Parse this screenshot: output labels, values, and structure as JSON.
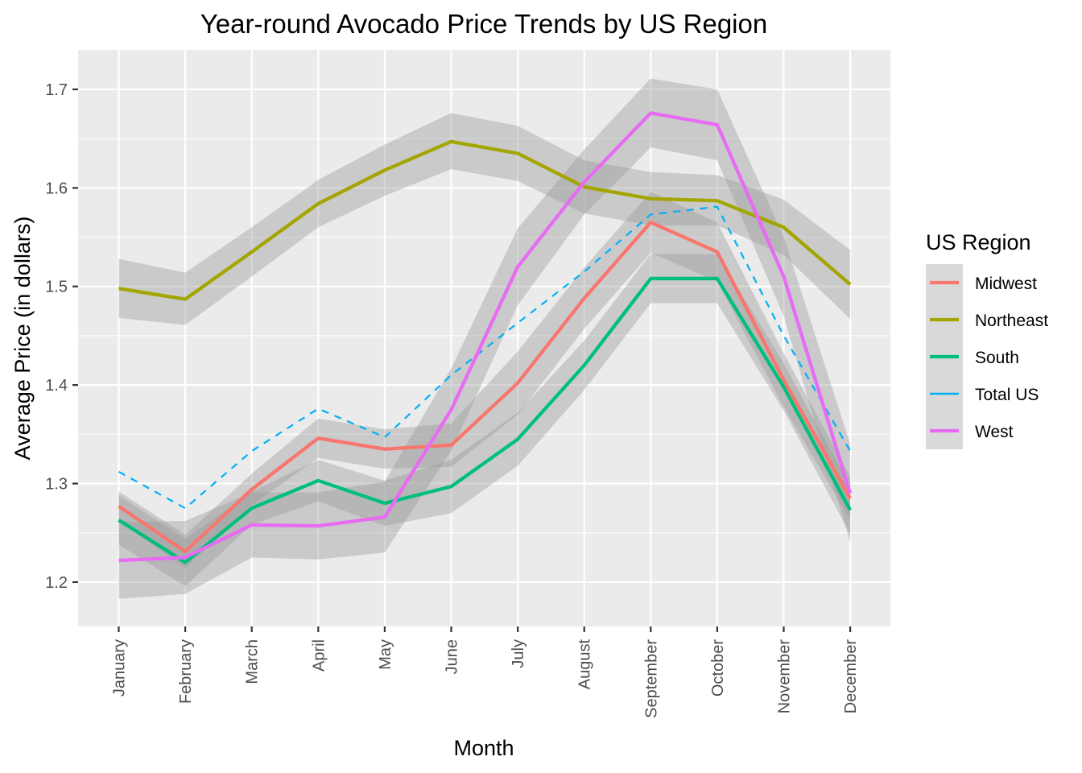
{
  "chart_data": {
    "type": "line",
    "title": "Year-round Avocado Price Trends by US Region",
    "xlabel": "Month",
    "ylabel": "Average Price (in dollars)",
    "categories": [
      "January",
      "February",
      "March",
      "April",
      "May",
      "June",
      "July",
      "August",
      "September",
      "October",
      "November",
      "December"
    ],
    "ylim": [
      1.155,
      1.74
    ],
    "yticks": [
      "1.2",
      "1.3",
      "1.4",
      "1.5",
      "1.6",
      "1.7"
    ],
    "ytick_values": [
      1.2,
      1.3,
      1.4,
      1.5,
      1.6,
      1.7
    ],
    "grid": true,
    "legend": {
      "title": "US Region",
      "position": "right"
    },
    "series": [
      {
        "name": "Midwest",
        "color": "#F8766D",
        "dashed": false,
        "band": true,
        "values": [
          1.277,
          1.231,
          1.294,
          1.346,
          1.335,
          1.339,
          1.402,
          1.488,
          1.565,
          1.535,
          1.405,
          1.285
        ],
        "lower": [
          1.262,
          1.214,
          1.278,
          1.326,
          1.315,
          1.317,
          1.37,
          1.457,
          1.534,
          1.505,
          1.378,
          1.263
        ],
        "upper": [
          1.292,
          1.248,
          1.31,
          1.366,
          1.355,
          1.361,
          1.434,
          1.519,
          1.596,
          1.565,
          1.432,
          1.307
        ]
      },
      {
        "name": "Northeast",
        "color": "#A3A500",
        "dashed": false,
        "band": true,
        "values": [
          1.498,
          1.487,
          1.535,
          1.584,
          1.618,
          1.647,
          1.635,
          1.601,
          1.589,
          1.587,
          1.56,
          1.502
        ],
        "lower": [
          1.468,
          1.461,
          1.51,
          1.56,
          1.592,
          1.619,
          1.607,
          1.574,
          1.562,
          1.562,
          1.532,
          1.467
        ],
        "upper": [
          1.528,
          1.514,
          1.56,
          1.608,
          1.644,
          1.676,
          1.663,
          1.628,
          1.616,
          1.613,
          1.588,
          1.537
        ]
      },
      {
        "name": "South",
        "color": "#00BF7D",
        "dashed": false,
        "band": true,
        "values": [
          1.263,
          1.22,
          1.275,
          1.303,
          1.28,
          1.297,
          1.345,
          1.42,
          1.508,
          1.508,
          1.398,
          1.273
        ],
        "lower": [
          1.238,
          1.196,
          1.258,
          1.282,
          1.257,
          1.27,
          1.318,
          1.395,
          1.483,
          1.483,
          1.374,
          1.249
        ],
        "upper": [
          1.288,
          1.244,
          1.292,
          1.324,
          1.303,
          1.324,
          1.372,
          1.445,
          1.533,
          1.533,
          1.422,
          1.297
        ]
      },
      {
        "name": "Total US",
        "color": "#00B0F6",
        "dashed": true,
        "band": false,
        "values": [
          1.312,
          1.275,
          1.333,
          1.376,
          1.347,
          1.41,
          1.463,
          1.515,
          1.573,
          1.581,
          1.45,
          1.333
        ]
      },
      {
        "name": "West",
        "color": "#E76BF3",
        "dashed": false,
        "band": true,
        "values": [
          1.222,
          1.225,
          1.258,
          1.257,
          1.266,
          1.375,
          1.52,
          1.606,
          1.676,
          1.664,
          1.51,
          1.29
        ],
        "lower": [
          1.183,
          1.188,
          1.225,
          1.223,
          1.23,
          1.333,
          1.481,
          1.573,
          1.641,
          1.628,
          1.47,
          1.24
        ],
        "upper": [
          1.261,
          1.262,
          1.291,
          1.291,
          1.302,
          1.417,
          1.559,
          1.639,
          1.711,
          1.7,
          1.55,
          1.34
        ]
      }
    ]
  }
}
